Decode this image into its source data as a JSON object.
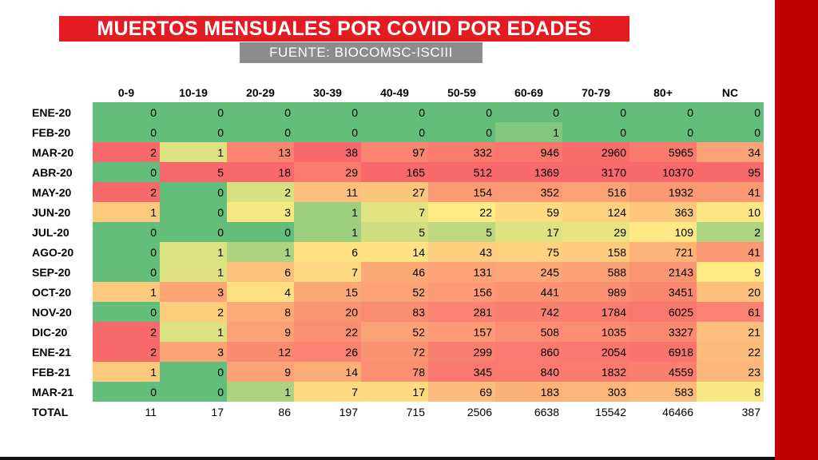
{
  "header": {
    "title": "MUERTOS MENSUALES POR COVID POR EDADES",
    "source": "FUENTE:  BIOCOMSC-ISCIII"
  },
  "colors": {
    "background_frame": "#c00000",
    "title_bg": "#e31b23",
    "source_bg": "#8c8c8c",
    "scale_low": "#63be7b",
    "scale_mid": "#ffeb84",
    "scale_high": "#f8696b"
  },
  "chart_data": {
    "type": "heatmap",
    "title": "MUERTOS MENSUALES POR COVID POR EDADES",
    "subtitle": "FUENTE:  BIOCOMSC-ISCIII",
    "columns": [
      "0-9",
      "10-19",
      "20-29",
      "30-39",
      "40-49",
      "50-59",
      "60-69",
      "70-79",
      "80+",
      "NC"
    ],
    "rows": [
      "ENE-20",
      "FEB-20",
      "MAR-20",
      "ABR-20",
      "MAY-20",
      "JUN-20",
      "JUL-20",
      "AGO-20",
      "SEP-20",
      "OCT-20",
      "NOV-20",
      "DIC-20",
      "ENE-21",
      "FEB-21",
      "MAR-21"
    ],
    "values": [
      [
        0,
        0,
        0,
        0,
        0,
        0,
        0,
        0,
        0,
        0
      ],
      [
        0,
        0,
        0,
        0,
        0,
        0,
        1,
        0,
        0,
        0
      ],
      [
        2,
        1,
        13,
        38,
        97,
        332,
        946,
        2960,
        5965,
        34
      ],
      [
        0,
        5,
        18,
        29,
        165,
        512,
        1369,
        3170,
        10370,
        95
      ],
      [
        2,
        0,
        2,
        11,
        27,
        154,
        352,
        516,
        1932,
        41
      ],
      [
        1,
        0,
        3,
        1,
        7,
        22,
        59,
        124,
        363,
        10
      ],
      [
        0,
        0,
        0,
        1,
        5,
        5,
        17,
        29,
        109,
        2
      ],
      [
        0,
        1,
        1,
        6,
        14,
        43,
        75,
        158,
        721,
        41
      ],
      [
        0,
        1,
        6,
        7,
        46,
        131,
        245,
        588,
        2143,
        9
      ],
      [
        1,
        3,
        4,
        15,
        52,
        156,
        441,
        989,
        3451,
        20
      ],
      [
        0,
        2,
        8,
        20,
        83,
        281,
        742,
        1784,
        6025,
        61
      ],
      [
        2,
        1,
        9,
        22,
        52,
        157,
        508,
        1035,
        3327,
        21
      ],
      [
        2,
        3,
        12,
        26,
        72,
        299,
        860,
        2054,
        6918,
        22
      ],
      [
        1,
        0,
        9,
        14,
        78,
        345,
        840,
        1832,
        4559,
        23
      ],
      [
        0,
        0,
        1,
        7,
        17,
        69,
        183,
        303,
        583,
        8
      ]
    ],
    "total_label": "TOTAL",
    "totals": [
      11,
      17,
      86,
      197,
      715,
      2506,
      6638,
      15542,
      46466,
      387
    ]
  }
}
